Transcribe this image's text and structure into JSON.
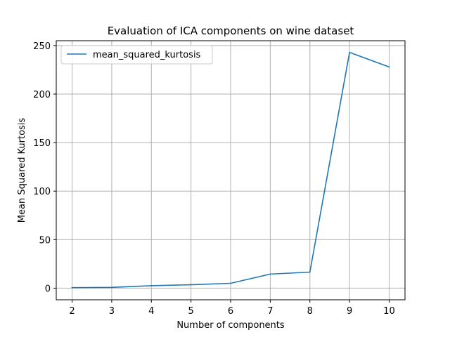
{
  "chart_data": {
    "type": "line",
    "title": "Evaluation of ICA components on wine dataset",
    "xlabel": "Number of components",
    "ylabel": "Mean Squared Kurtosis",
    "x": [
      2,
      3,
      4,
      5,
      6,
      7,
      8,
      9,
      10
    ],
    "xticks": [
      "2",
      "3",
      "4",
      "5",
      "6",
      "7",
      "8",
      "9",
      "10"
    ],
    "yticks": [
      "0",
      "50",
      "100",
      "150",
      "200",
      "250"
    ],
    "xlim": [
      1.6,
      10.4
    ],
    "ylim": [
      -12,
      255
    ],
    "grid": true,
    "legend_position": "top-left",
    "series": [
      {
        "name": "mean_squared_kurtosis",
        "color": "#1f77b4",
        "values": [
          0.5,
          0.8,
          2.5,
          3.5,
          5.0,
          14.5,
          16.5,
          243.0,
          228.0
        ]
      }
    ]
  }
}
